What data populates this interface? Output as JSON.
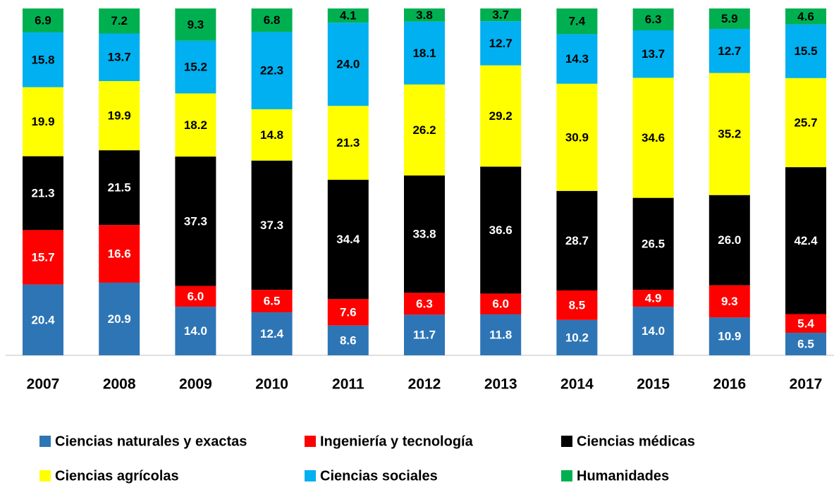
{
  "chart_data": {
    "type": "stacked_bar",
    "categories": [
      "2007",
      "2008",
      "2009",
      "2010",
      "2011",
      "2012",
      "2013",
      "2014",
      "2015",
      "2016",
      "2017"
    ],
    "series": [
      {
        "name": "Ciencias naturales y exactas",
        "color": "#2e75b6",
        "label_color": "#ffffff",
        "values": [
          20.4,
          20.9,
          14.0,
          12.4,
          8.6,
          11.7,
          11.8,
          10.2,
          14.0,
          10.9,
          6.5
        ],
        "value_labels": [
          "20.4",
          "20.9",
          "14.0",
          "12.4",
          "8.6",
          "11.7",
          "11.8",
          "10.2",
          "14.0",
          "10.9",
          "6.5"
        ]
      },
      {
        "name": "Ingeniería y tecnología",
        "color": "#ff0000",
        "label_color": "#ffffff",
        "values": [
          15.7,
          16.6,
          6.0,
          6.5,
          7.6,
          6.3,
          6.0,
          8.5,
          4.9,
          9.3,
          5.4
        ],
        "value_labels": [
          "15.7",
          "16.6",
          "6.0",
          "6.5",
          "7.6",
          "6.3",
          "6.0",
          "8.5",
          "4.9",
          "9.3",
          "5.4"
        ]
      },
      {
        "name": "Ciencias médicas",
        "color": "#000000",
        "label_color": "#ffffff",
        "values": [
          21.3,
          21.5,
          37.3,
          37.3,
          34.4,
          33.8,
          36.6,
          28.7,
          26.5,
          26.0,
          42.4
        ],
        "value_labels": [
          "21.3",
          "21.5",
          "37.3",
          "37.3",
          "34.4",
          "33.8",
          "36.6",
          "28.7",
          "26.5",
          "26.0",
          "42.4"
        ]
      },
      {
        "name": "Ciencias agrícolas",
        "color": "#ffff00",
        "label_color": "#000000",
        "values": [
          19.9,
          19.9,
          18.2,
          14.8,
          21.3,
          26.2,
          29.2,
          30.9,
          34.6,
          35.2,
          25.7
        ],
        "value_labels": [
          "19.9",
          "19.9",
          "18.2",
          "14.8",
          "21.3",
          "26.2",
          "29.2",
          "30.9",
          "34.6",
          "35.2",
          "25.7"
        ]
      },
      {
        "name": "Ciencias sociales",
        "color": "#00b0f0",
        "label_color": "#000000",
        "values": [
          15.8,
          13.7,
          15.2,
          22.3,
          24.0,
          18.1,
          12.7,
          14.3,
          13.7,
          12.7,
          15.5
        ],
        "value_labels": [
          "15.8",
          "13.7",
          "15.2",
          "22.3",
          "24.0",
          "18.1",
          "12.7",
          "14.3",
          "13.7",
          "12.7",
          "15.5"
        ]
      },
      {
        "name": "Humanidades",
        "color": "#00b050",
        "label_color": "#000000",
        "values": [
          6.9,
          7.2,
          9.3,
          6.8,
          4.1,
          3.8,
          3.7,
          7.4,
          6.3,
          5.9,
          4.6
        ],
        "value_labels": [
          "6.9",
          "7.2",
          "9.3",
          "6.8",
          "4.1",
          "3.8",
          "3.7",
          "7.4",
          "6.3",
          "5.9",
          "4.6"
        ]
      }
    ]
  }
}
